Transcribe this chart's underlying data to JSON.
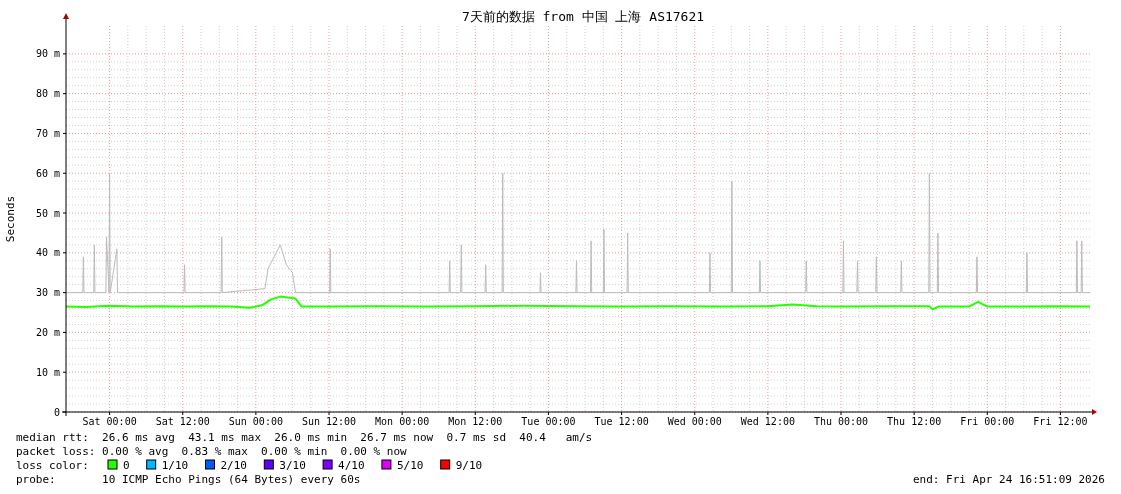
{
  "chart_data": {
    "type": "line",
    "title": "7天前的数据 from 中国 上海 AS17621",
    "ylabel": "Seconds",
    "xlim": [
      "2026-04-17T16:51",
      "2026-04-24T16:51"
    ],
    "xticks": [
      {
        "value": "2026-04-18T00:00",
        "label": "Sat 00:00"
      },
      {
        "value": "2026-04-18T12:00",
        "label": "Sat 12:00"
      },
      {
        "value": "2026-04-19T00:00",
        "label": "Sun 00:00"
      },
      {
        "value": "2026-04-19T12:00",
        "label": "Sun 12:00"
      },
      {
        "value": "2026-04-20T00:00",
        "label": "Mon 00:00"
      },
      {
        "value": "2026-04-20T12:00",
        "label": "Mon 12:00"
      },
      {
        "value": "2026-04-21T00:00",
        "label": "Tue 00:00"
      },
      {
        "value": "2026-04-21T12:00",
        "label": "Tue 12:00"
      },
      {
        "value": "2026-04-22T00:00",
        "label": "Wed 00:00"
      },
      {
        "value": "2026-04-22T12:00",
        "label": "Wed 12:00"
      },
      {
        "value": "2026-04-23T00:00",
        "label": "Thu 00:00"
      },
      {
        "value": "2026-04-23T12:00",
        "label": "Thu 12:00"
      },
      {
        "value": "2026-04-24T00:00",
        "label": "Fri 00:00"
      },
      {
        "value": "2026-04-24T12:00",
        "label": "Fri 12:00"
      }
    ],
    "ylim": [
      0,
      97
    ],
    "yticks": [
      0,
      {
        "value": 10,
        "label": "10 m"
      },
      {
        "value": 20,
        "label": "20 m"
      },
      {
        "value": 30,
        "label": "30 m"
      },
      {
        "value": 40,
        "label": "40 m"
      },
      {
        "value": 50,
        "label": "50 m"
      },
      {
        "value": 60,
        "label": "60 m"
      },
      {
        "value": 70,
        "label": "70 m"
      },
      {
        "value": 80,
        "label": "80 m"
      },
      {
        "value": 90,
        "label": "90 m"
      }
    ],
    "grid": true,
    "legend": "bottom",
    "legend_title": "loss color:",
    "series": [
      {
        "color": "#bbbbbb",
        "x": [
          "2026-04-17T16:51",
          "2026-04-17T19:36",
          "2026-04-17T19:42",
          "2026-04-17T19:48",
          "2026-04-17T21:24",
          "2026-04-17T21:30",
          "2026-04-17T21:36",
          "2026-04-17T23:24",
          "2026-04-17T23:30",
          "2026-04-17T23:54",
          "2026-04-18T00:00",
          "2026-04-18T00:06",
          "2026-04-18T01:12",
          "2026-04-18T01:18",
          "2026-04-18T12:12",
          "2026-04-18T12:18",
          "2026-04-18T12:24",
          "2026-04-18T18:18",
          "2026-04-18T18:24",
          "2026-04-18T18:30",
          "2026-04-19T01:30",
          "2026-04-19T02:00",
          "2026-04-19T03:00",
          "2026-04-19T04:00",
          "2026-04-19T05:00",
          "2026-04-19T06:00",
          "2026-04-19T06:30",
          "2026-04-19T12:06",
          "2026-04-19T12:12",
          "2026-04-19T12:18",
          "2026-04-20T07:42",
          "2026-04-20T07:48",
          "2026-04-20T07:54",
          "2026-04-20T09:36",
          "2026-04-20T09:42",
          "2026-04-20T09:48",
          "2026-04-20T13:36",
          "2026-04-20T13:42",
          "2026-04-20T13:48",
          "2026-04-20T16:24",
          "2026-04-20T16:30",
          "2026-04-20T16:36",
          "2026-04-20T22:36",
          "2026-04-20T22:42",
          "2026-04-20T22:48",
          "2026-04-21T04:30",
          "2026-04-21T04:36",
          "2026-04-21T04:42",
          "2026-04-21T06:54",
          "2026-04-21T07:00",
          "2026-04-21T07:06",
          "2026-04-21T09:00",
          "2026-04-21T09:06",
          "2026-04-21T09:12",
          "2026-04-21T12:54",
          "2026-04-21T13:00",
          "2026-04-21T13:06",
          "2026-04-22T02:24",
          "2026-04-22T02:30",
          "2026-04-22T02:36",
          "2026-04-22T06:00",
          "2026-04-22T06:06",
          "2026-04-22T06:12",
          "2026-04-22T10:36",
          "2026-04-22T10:42",
          "2026-04-22T10:48",
          "2026-04-22T18:12",
          "2026-04-22T18:18",
          "2026-04-22T18:24",
          "2026-04-23T00:18",
          "2026-04-23T00:24",
          "2026-04-23T00:30",
          "2026-04-23T02:36",
          "2026-04-23T02:42",
          "2026-04-23T02:48",
          "2026-04-23T05:42",
          "2026-04-23T05:48",
          "2026-04-23T05:54",
          "2026-04-23T09:48",
          "2026-04-23T09:54",
          "2026-04-23T10:00",
          "2026-04-23T14:24",
          "2026-04-23T14:30",
          "2026-04-23T14:36",
          "2026-04-23T15:48",
          "2026-04-23T15:54",
          "2026-04-23T16:00",
          "2026-04-23T22:12",
          "2026-04-23T22:18",
          "2026-04-23T22:24",
          "2026-04-24T06:24",
          "2026-04-24T06:30",
          "2026-04-24T06:36",
          "2026-04-24T14:36",
          "2026-04-24T14:42",
          "2026-04-24T14:48",
          "2026-04-24T15:24",
          "2026-04-24T15:30",
          "2026-04-24T15:36",
          "2026-04-24T16:51"
        ],
        "values": [
          30,
          30,
          39,
          30,
          30,
          42,
          30,
          30,
          44,
          30,
          60,
          30,
          41,
          30,
          30,
          37,
          30,
          30,
          44,
          30,
          31,
          36,
          39,
          42,
          37,
          35,
          30,
          30,
          41,
          30,
          30,
          38,
          30,
          30,
          42,
          30,
          30,
          37,
          30,
          30,
          60,
          30,
          30,
          35,
          30,
          30,
          38,
          30,
          30,
          43,
          30,
          30,
          46,
          30,
          30,
          45,
          30,
          30,
          40,
          30,
          30,
          58,
          30,
          30,
          38,
          30,
          30,
          38,
          30,
          30,
          43,
          30,
          30,
          38,
          30,
          30,
          39,
          30,
          30,
          38,
          30,
          30,
          60,
          30,
          30,
          45,
          30,
          30,
          39,
          30,
          30,
          40,
          30,
          30,
          43,
          30,
          30,
          43,
          30,
          30
        ]
      },
      {
        "name": "0",
        "color": "#26ff00",
        "x": [
          "2026-04-17T16:51",
          "2026-04-17T20:00",
          "2026-04-18T00:00",
          "2026-04-18T04:00",
          "2026-04-18T08:00",
          "2026-04-18T12:00",
          "2026-04-18T16:00",
          "2026-04-18T20:00",
          "2026-04-18T23:00",
          "2026-04-19T01:00",
          "2026-04-19T02:30",
          "2026-04-19T04:00",
          "2026-04-19T05:30",
          "2026-04-19T06:30",
          "2026-04-19T07:30",
          "2026-04-19T12:00",
          "2026-04-19T20:00",
          "2026-04-20T04:00",
          "2026-04-20T12:00",
          "2026-04-20T20:00",
          "2026-04-21T04:00",
          "2026-04-21T12:00",
          "2026-04-21T20:00",
          "2026-04-22T04:00",
          "2026-04-22T12:00",
          "2026-04-22T16:00",
          "2026-04-22T20:00",
          "2026-04-23T00:00",
          "2026-04-23T08:00",
          "2026-04-23T14:30",
          "2026-04-23T15:00",
          "2026-04-23T16:00",
          "2026-04-23T21:00",
          "2026-04-23T22:30",
          "2026-04-24T00:00",
          "2026-04-24T06:00",
          "2026-04-24T12:00",
          "2026-04-24T16:51"
        ],
        "values": [
          26.5,
          26.4,
          26.7,
          26.5,
          26.6,
          26.5,
          26.6,
          26.5,
          26.2,
          26.8,
          28.3,
          29.0,
          28.7,
          28.5,
          26.5,
          26.5,
          26.6,
          26.5,
          26.6,
          26.7,
          26.6,
          26.5,
          26.6,
          26.5,
          26.6,
          27.0,
          26.6,
          26.5,
          26.6,
          26.6,
          25.8,
          26.5,
          26.5,
          27.7,
          26.5,
          26.5,
          26.6,
          26.5
        ]
      },
      {
        "name": "1/10",
        "color": "#00b8ff"
      },
      {
        "name": "2/10",
        "color": "#0059ff"
      },
      {
        "name": "3/10",
        "color": "#5e00ff"
      },
      {
        "name": "4/10",
        "color": "#7e00ff"
      },
      {
        "name": "5/10",
        "color": "#dd00ff"
      },
      {
        "name": "9/10",
        "color": "#ff0000"
      }
    ],
    "annotations": [
      "median rtt:  26.6 ms avg  43.1 ms max  26.0 ms min  26.7 ms now  0.7 ms sd  40.4   am/s",
      "packet loss: 0.00 % avg  0.83 % max  0.00 % min  0.00 % now",
      "probe:       10 ICMP Echo Pings (64 Bytes) every 60s",
      "end: Fri Apr 24 16:51:09 2026"
    ]
  }
}
